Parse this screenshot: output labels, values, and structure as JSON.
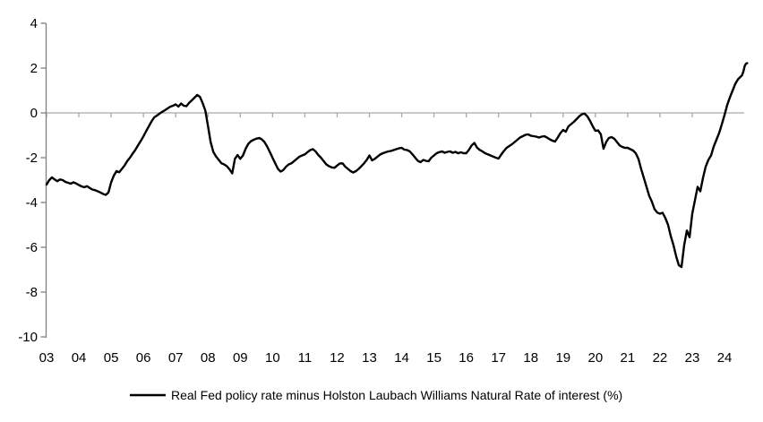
{
  "legend": {
    "label": "Real Fed policy rate minus Holston Laubach Williams Natural Rate of interest (%)"
  },
  "colors": {
    "line": "#000000",
    "axis": "#808080",
    "zero_line": "#a9a9a9",
    "text": "#000000",
    "background": "#ffffff"
  },
  "chart_data": {
    "type": "line",
    "title": "",
    "xlabel": "",
    "ylabel": "",
    "grid": false,
    "legend_position": "bottom",
    "ylim": [
      -10,
      4
    ],
    "xlim": [
      2003.0,
      2024.72
    ],
    "y_ticks": [
      "4",
      "2",
      "0",
      "-2",
      "-4",
      "-6",
      "-8",
      "-10"
    ],
    "y_tick_values": [
      4,
      2,
      0,
      -2,
      -4,
      -6,
      -8,
      -10
    ],
    "x_ticks": [
      "03",
      "04",
      "05",
      "06",
      "07",
      "08",
      "09",
      "10",
      "11",
      "12",
      "13",
      "14",
      "15",
      "16",
      "17",
      "18",
      "19",
      "20",
      "21",
      "22",
      "23",
      "24"
    ],
    "x_tick_years": [
      2003,
      2004,
      2005,
      2006,
      2007,
      2008,
      2009,
      2010,
      2011,
      2012,
      2013,
      2014,
      2015,
      2016,
      2017,
      2018,
      2019,
      2020,
      2021,
      2022,
      2023,
      2024
    ],
    "zero_baseline": true,
    "series": [
      {
        "name": "Real Fed policy rate minus Holston Laubach Williams Natural Rate of interest (%)",
        "color": "#000000",
        "points": [
          [
            2003.0,
            -3.2
          ],
          [
            2003.083,
            -3.0
          ],
          [
            2003.167,
            -2.88
          ],
          [
            2003.25,
            -2.97
          ],
          [
            2003.333,
            -3.05
          ],
          [
            2003.417,
            -2.97
          ],
          [
            2003.5,
            -3.0
          ],
          [
            2003.583,
            -3.08
          ],
          [
            2003.667,
            -3.12
          ],
          [
            2003.75,
            -3.16
          ],
          [
            2003.833,
            -3.1
          ],
          [
            2003.917,
            -3.15
          ],
          [
            2004.0,
            -3.22
          ],
          [
            2004.083,
            -3.28
          ],
          [
            2004.167,
            -3.32
          ],
          [
            2004.25,
            -3.27
          ],
          [
            2004.333,
            -3.35
          ],
          [
            2004.417,
            -3.42
          ],
          [
            2004.5,
            -3.45
          ],
          [
            2004.583,
            -3.5
          ],
          [
            2004.667,
            -3.55
          ],
          [
            2004.75,
            -3.62
          ],
          [
            2004.833,
            -3.66
          ],
          [
            2004.917,
            -3.55
          ],
          [
            2005.0,
            -3.1
          ],
          [
            2005.083,
            -2.8
          ],
          [
            2005.167,
            -2.6
          ],
          [
            2005.25,
            -2.65
          ],
          [
            2005.333,
            -2.5
          ],
          [
            2005.417,
            -2.35
          ],
          [
            2005.5,
            -2.15
          ],
          [
            2005.583,
            -2.0
          ],
          [
            2005.667,
            -1.82
          ],
          [
            2005.75,
            -1.65
          ],
          [
            2005.833,
            -1.45
          ],
          [
            2005.917,
            -1.25
          ],
          [
            2006.0,
            -1.05
          ],
          [
            2006.083,
            -0.82
          ],
          [
            2006.167,
            -0.6
          ],
          [
            2006.25,
            -0.38
          ],
          [
            2006.333,
            -0.2
          ],
          [
            2006.417,
            -0.12
          ],
          [
            2006.5,
            -0.03
          ],
          [
            2006.583,
            0.05
          ],
          [
            2006.667,
            0.12
          ],
          [
            2006.75,
            0.2
          ],
          [
            2006.833,
            0.28
          ],
          [
            2006.917,
            0.32
          ],
          [
            2007.0,
            0.38
          ],
          [
            2007.083,
            0.28
          ],
          [
            2007.167,
            0.42
          ],
          [
            2007.25,
            0.32
          ],
          [
            2007.333,
            0.3
          ],
          [
            2007.417,
            0.45
          ],
          [
            2007.5,
            0.56
          ],
          [
            2007.583,
            0.68
          ],
          [
            2007.667,
            0.8
          ],
          [
            2007.75,
            0.72
          ],
          [
            2007.833,
            0.45
          ],
          [
            2007.917,
            0.1
          ],
          [
            2008.0,
            -0.6
          ],
          [
            2008.083,
            -1.3
          ],
          [
            2008.167,
            -1.75
          ],
          [
            2008.25,
            -1.95
          ],
          [
            2008.333,
            -2.1
          ],
          [
            2008.417,
            -2.25
          ],
          [
            2008.5,
            -2.3
          ],
          [
            2008.583,
            -2.38
          ],
          [
            2008.667,
            -2.52
          ],
          [
            2008.75,
            -2.7
          ],
          [
            2008.833,
            -2.05
          ],
          [
            2008.917,
            -1.88
          ],
          [
            2009.0,
            -2.05
          ],
          [
            2009.083,
            -1.9
          ],
          [
            2009.167,
            -1.6
          ],
          [
            2009.25,
            -1.38
          ],
          [
            2009.333,
            -1.26
          ],
          [
            2009.417,
            -1.2
          ],
          [
            2009.5,
            -1.15
          ],
          [
            2009.583,
            -1.12
          ],
          [
            2009.667,
            -1.18
          ],
          [
            2009.75,
            -1.3
          ],
          [
            2009.833,
            -1.5
          ],
          [
            2009.917,
            -1.75
          ],
          [
            2010.0,
            -2.0
          ],
          [
            2010.083,
            -2.25
          ],
          [
            2010.167,
            -2.5
          ],
          [
            2010.25,
            -2.62
          ],
          [
            2010.333,
            -2.55
          ],
          [
            2010.417,
            -2.4
          ],
          [
            2010.5,
            -2.3
          ],
          [
            2010.583,
            -2.25
          ],
          [
            2010.667,
            -2.15
          ],
          [
            2010.75,
            -2.05
          ],
          [
            2010.833,
            -1.95
          ],
          [
            2010.917,
            -1.9
          ],
          [
            2011.0,
            -1.85
          ],
          [
            2011.083,
            -1.75
          ],
          [
            2011.167,
            -1.66
          ],
          [
            2011.25,
            -1.62
          ],
          [
            2011.333,
            -1.72
          ],
          [
            2011.417,
            -1.88
          ],
          [
            2011.5,
            -2.0
          ],
          [
            2011.583,
            -2.15
          ],
          [
            2011.667,
            -2.3
          ],
          [
            2011.75,
            -2.38
          ],
          [
            2011.833,
            -2.43
          ],
          [
            2011.917,
            -2.45
          ],
          [
            2012.0,
            -2.35
          ],
          [
            2012.083,
            -2.26
          ],
          [
            2012.167,
            -2.25
          ],
          [
            2012.25,
            -2.4
          ],
          [
            2012.333,
            -2.5
          ],
          [
            2012.417,
            -2.6
          ],
          [
            2012.5,
            -2.66
          ],
          [
            2012.583,
            -2.6
          ],
          [
            2012.667,
            -2.5
          ],
          [
            2012.75,
            -2.38
          ],
          [
            2012.833,
            -2.25
          ],
          [
            2012.917,
            -2.1
          ],
          [
            2013.0,
            -1.9
          ],
          [
            2013.083,
            -2.12
          ],
          [
            2013.167,
            -2.05
          ],
          [
            2013.25,
            -1.95
          ],
          [
            2013.333,
            -1.86
          ],
          [
            2013.417,
            -1.8
          ],
          [
            2013.5,
            -1.76
          ],
          [
            2013.583,
            -1.72
          ],
          [
            2013.667,
            -1.7
          ],
          [
            2013.75,
            -1.66
          ],
          [
            2013.833,
            -1.62
          ],
          [
            2013.917,
            -1.58
          ],
          [
            2014.0,
            -1.56
          ],
          [
            2014.083,
            -1.64
          ],
          [
            2014.167,
            -1.66
          ],
          [
            2014.25,
            -1.72
          ],
          [
            2014.333,
            -1.85
          ],
          [
            2014.417,
            -2.0
          ],
          [
            2014.5,
            -2.14
          ],
          [
            2014.583,
            -2.2
          ],
          [
            2014.667,
            -2.1
          ],
          [
            2014.75,
            -2.14
          ],
          [
            2014.833,
            -2.16
          ],
          [
            2014.917,
            -2.0
          ],
          [
            2015.0,
            -1.9
          ],
          [
            2015.083,
            -1.8
          ],
          [
            2015.167,
            -1.75
          ],
          [
            2015.25,
            -1.72
          ],
          [
            2015.333,
            -1.78
          ],
          [
            2015.417,
            -1.74
          ],
          [
            2015.5,
            -1.72
          ],
          [
            2015.583,
            -1.78
          ],
          [
            2015.667,
            -1.74
          ],
          [
            2015.75,
            -1.8
          ],
          [
            2015.833,
            -1.76
          ],
          [
            2015.917,
            -1.8
          ],
          [
            2016.0,
            -1.8
          ],
          [
            2016.083,
            -1.65
          ],
          [
            2016.167,
            -1.45
          ],
          [
            2016.25,
            -1.34
          ],
          [
            2016.333,
            -1.55
          ],
          [
            2016.417,
            -1.65
          ],
          [
            2016.5,
            -1.72
          ],
          [
            2016.583,
            -1.8
          ],
          [
            2016.667,
            -1.85
          ],
          [
            2016.75,
            -1.9
          ],
          [
            2016.833,
            -1.95
          ],
          [
            2016.917,
            -2.0
          ],
          [
            2017.0,
            -2.04
          ],
          [
            2017.083,
            -1.86
          ],
          [
            2017.167,
            -1.7
          ],
          [
            2017.25,
            -1.56
          ],
          [
            2017.333,
            -1.48
          ],
          [
            2017.417,
            -1.4
          ],
          [
            2017.5,
            -1.3
          ],
          [
            2017.583,
            -1.2
          ],
          [
            2017.667,
            -1.1
          ],
          [
            2017.75,
            -1.04
          ],
          [
            2017.833,
            -0.98
          ],
          [
            2017.917,
            -0.96
          ],
          [
            2018.0,
            -1.02
          ],
          [
            2018.083,
            -1.04
          ],
          [
            2018.167,
            -1.06
          ],
          [
            2018.25,
            -1.1
          ],
          [
            2018.333,
            -1.06
          ],
          [
            2018.417,
            -1.04
          ],
          [
            2018.5,
            -1.1
          ],
          [
            2018.583,
            -1.18
          ],
          [
            2018.667,
            -1.24
          ],
          [
            2018.75,
            -1.28
          ],
          [
            2018.833,
            -1.1
          ],
          [
            2018.917,
            -0.9
          ],
          [
            2019.0,
            -0.76
          ],
          [
            2019.083,
            -0.84
          ],
          [
            2019.167,
            -0.6
          ],
          [
            2019.25,
            -0.5
          ],
          [
            2019.333,
            -0.4
          ],
          [
            2019.417,
            -0.28
          ],
          [
            2019.5,
            -0.15
          ],
          [
            2019.583,
            -0.06
          ],
          [
            2019.667,
            -0.03
          ],
          [
            2019.75,
            -0.15
          ],
          [
            2019.833,
            -0.35
          ],
          [
            2019.917,
            -0.6
          ],
          [
            2020.0,
            -0.8
          ],
          [
            2020.083,
            -0.78
          ],
          [
            2020.167,
            -0.95
          ],
          [
            2020.25,
            -1.6
          ],
          [
            2020.333,
            -1.3
          ],
          [
            2020.417,
            -1.12
          ],
          [
            2020.5,
            -1.08
          ],
          [
            2020.583,
            -1.15
          ],
          [
            2020.667,
            -1.3
          ],
          [
            2020.75,
            -1.45
          ],
          [
            2020.833,
            -1.52
          ],
          [
            2020.917,
            -1.56
          ],
          [
            2021.0,
            -1.56
          ],
          [
            2021.083,
            -1.62
          ],
          [
            2021.167,
            -1.68
          ],
          [
            2021.25,
            -1.8
          ],
          [
            2021.333,
            -2.05
          ],
          [
            2021.417,
            -2.5
          ],
          [
            2021.5,
            -2.9
          ],
          [
            2021.583,
            -3.3
          ],
          [
            2021.667,
            -3.7
          ],
          [
            2021.75,
            -3.96
          ],
          [
            2021.833,
            -4.3
          ],
          [
            2021.917,
            -4.45
          ],
          [
            2022.0,
            -4.5
          ],
          [
            2022.083,
            -4.46
          ],
          [
            2022.167,
            -4.7
          ],
          [
            2022.25,
            -5.0
          ],
          [
            2022.333,
            -5.5
          ],
          [
            2022.417,
            -5.9
          ],
          [
            2022.5,
            -6.4
          ],
          [
            2022.583,
            -6.8
          ],
          [
            2022.667,
            -6.88
          ],
          [
            2022.75,
            -5.9
          ],
          [
            2022.833,
            -5.25
          ],
          [
            2022.917,
            -5.55
          ],
          [
            2023.0,
            -4.5
          ],
          [
            2023.083,
            -3.9
          ],
          [
            2023.167,
            -3.3
          ],
          [
            2023.25,
            -3.5
          ],
          [
            2023.333,
            -2.9
          ],
          [
            2023.417,
            -2.4
          ],
          [
            2023.5,
            -2.1
          ],
          [
            2023.583,
            -1.9
          ],
          [
            2023.667,
            -1.5
          ],
          [
            2023.75,
            -1.2
          ],
          [
            2023.833,
            -0.9
          ],
          [
            2023.917,
            -0.5
          ],
          [
            2024.0,
            -0.1
          ],
          [
            2024.083,
            0.35
          ],
          [
            2024.167,
            0.7
          ],
          [
            2024.25,
            1.0
          ],
          [
            2024.333,
            1.3
          ],
          [
            2024.417,
            1.5
          ],
          [
            2024.5,
            1.62
          ],
          [
            2024.542,
            1.68
          ],
          [
            2024.583,
            1.85
          ],
          [
            2024.625,
            2.1
          ],
          [
            2024.667,
            2.2
          ],
          [
            2024.7,
            2.22
          ]
        ]
      }
    ]
  }
}
